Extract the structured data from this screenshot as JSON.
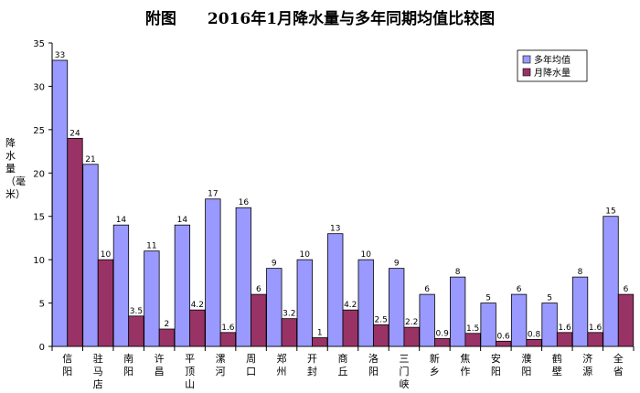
{
  "chart_data": {
    "type": "bar",
    "title": "附图　　2016年1月降水量与多年同期均值比较图",
    "ylabel": "降水量（毫米）",
    "ylim": [
      0,
      35
    ],
    "yticks": [
      0,
      5,
      10,
      15,
      20,
      25,
      30,
      35
    ],
    "grid": false,
    "legend_position": "top-right",
    "categories": [
      "信阳",
      "驻马店",
      "南阳",
      "许昌",
      "平顶山",
      "漯河",
      "周口",
      "郑州",
      "开封",
      "商丘",
      "洛阳",
      "三门峡",
      "新乡",
      "焦作",
      "安阳",
      "濮阳",
      "鹤壁",
      "济源",
      "全省"
    ],
    "series": [
      {
        "name": "多年均值",
        "color": "#9999ff",
        "values": [
          33,
          21,
          14,
          11,
          14,
          17,
          16,
          9,
          10,
          13,
          10,
          9,
          6,
          8,
          5,
          6,
          5,
          8,
          15
        ],
        "labels": [
          "33",
          "21",
          "14",
          "11",
          "14",
          "17",
          "16",
          "9",
          "10",
          "13",
          "10",
          "9",
          "6",
          "8",
          "5",
          "6",
          "5",
          "8",
          "15"
        ]
      },
      {
        "name": "月降水量",
        "color": "#993366",
        "values": [
          24,
          10,
          3.5,
          2,
          4.2,
          1.6,
          6,
          3.2,
          1,
          4.2,
          2.5,
          2.2,
          0.9,
          1.5,
          0.6,
          0.8,
          1.6,
          1.6,
          6
        ],
        "labels": [
          "24",
          "10",
          "3.5",
          "2",
          "4.2",
          "1.6",
          "6",
          "3.2",
          "1",
          "4.2",
          "2.5",
          "2.2",
          "0.9",
          "1.5",
          "0.6",
          "0.8",
          "1.6",
          "1.6",
          "6"
        ]
      }
    ]
  }
}
